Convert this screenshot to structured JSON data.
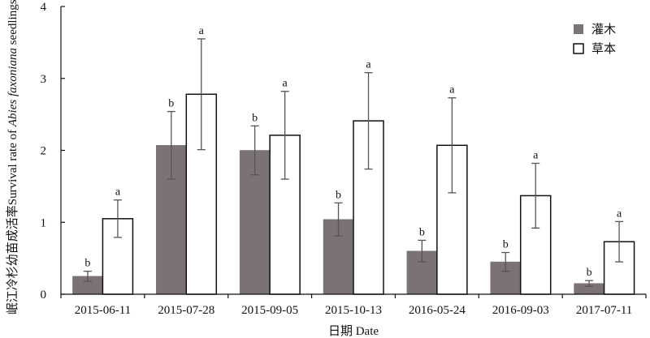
{
  "chart_data": {
    "type": "bar",
    "xlabel": "日期 Date",
    "ylabel_parts": [
      "岷江冷杉幼苗成活率",
      "Survival rate of ",
      "Abies faxoniana",
      " seedlings/%"
    ],
    "ylim": [
      0,
      4
    ],
    "yticks": [
      0,
      1,
      2,
      3,
      4
    ],
    "categories": [
      "2015-06-11",
      "2015-07-28",
      "2015-09-05",
      "2015-10-13",
      "2016-05-24",
      "2016-09-03",
      "2017-07-11"
    ],
    "legend_position": "top-right",
    "series": [
      {
        "name": "灌木",
        "color": "#7b7273",
        "fill": "solid",
        "values": [
          0.25,
          2.07,
          2.0,
          1.04,
          0.6,
          0.45,
          0.15
        ],
        "error": [
          0.07,
          0.47,
          0.34,
          0.23,
          0.15,
          0.13,
          0.04
        ],
        "significance": [
          "b",
          "b",
          "b",
          "b",
          "b",
          "b",
          "b"
        ]
      },
      {
        "name": "草本",
        "color": "#ffffff",
        "fill": "outline",
        "values": [
          1.05,
          2.78,
          2.21,
          2.41,
          2.07,
          1.37,
          0.73
        ],
        "error": [
          0.26,
          0.77,
          0.61,
          0.67,
          0.66,
          0.45,
          0.28
        ],
        "significance": [
          "a",
          "a",
          "a",
          "a",
          "a",
          "a",
          "a"
        ]
      }
    ]
  }
}
